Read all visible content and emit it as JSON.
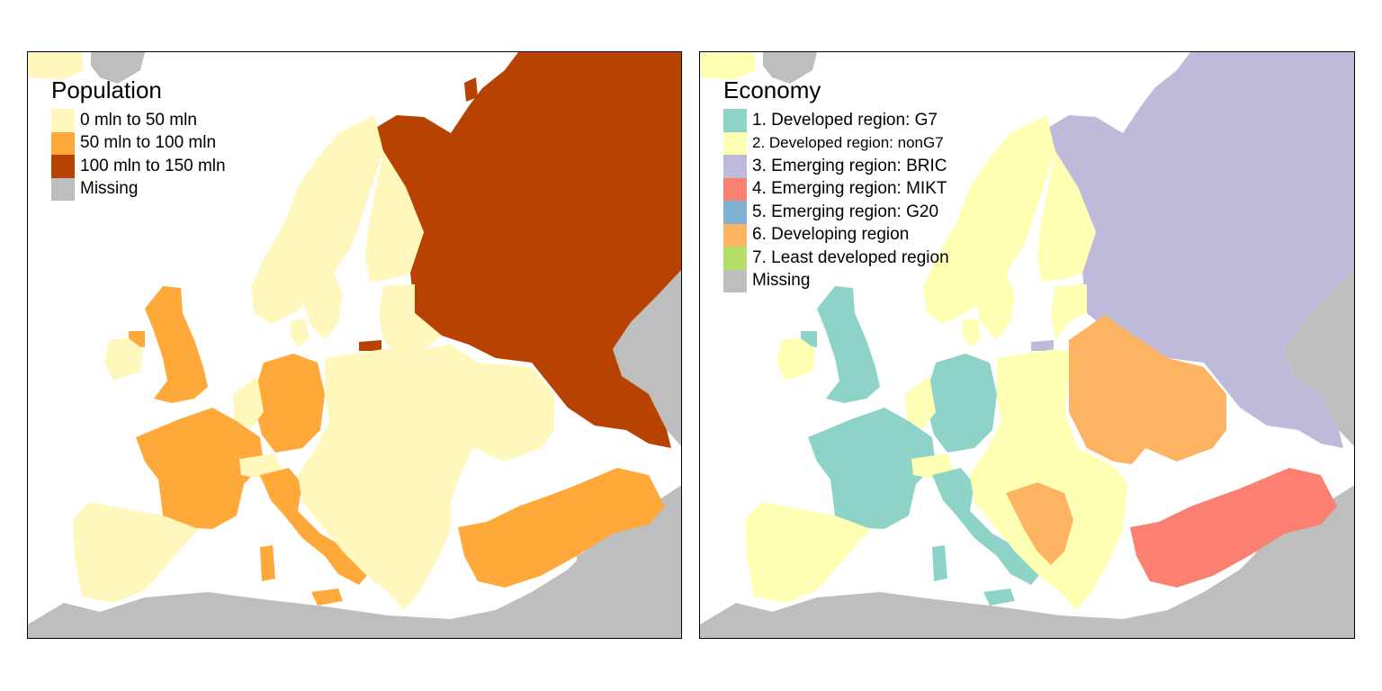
{
  "maps": [
    {
      "title": "Population",
      "legend": [
        {
          "label": "0 mln to 50 mln",
          "color": "#FFF7BC"
        },
        {
          "label": "50 mln to 100 mln",
          "color": "#FEA93A"
        },
        {
          "label": "100 mln to 150 mln",
          "color": "#B74202"
        },
        {
          "label": "Missing",
          "color": "#BEBEBE"
        }
      ]
    },
    {
      "title": "Economy",
      "legend": [
        {
          "label": "1. Developed region: G7",
          "color": "#8DD3C7"
        },
        {
          "label": "2. Developed region: nonG7",
          "color": "#FFFFB3"
        },
        {
          "label": "3. Emerging region: BRIC",
          "color": "#BEBADA"
        },
        {
          "label": "4. Emerging region: MIKT",
          "color": "#FB8072"
        },
        {
          "label": "5. Emerging region: G20",
          "color": "#80B1D3"
        },
        {
          "label": "6. Developing region",
          "color": "#FDB462"
        },
        {
          "label": "7. Least developed region",
          "color": "#B3DE69"
        },
        {
          "label": "Missing",
          "color": "#BEBEBE"
        }
      ]
    }
  ]
}
